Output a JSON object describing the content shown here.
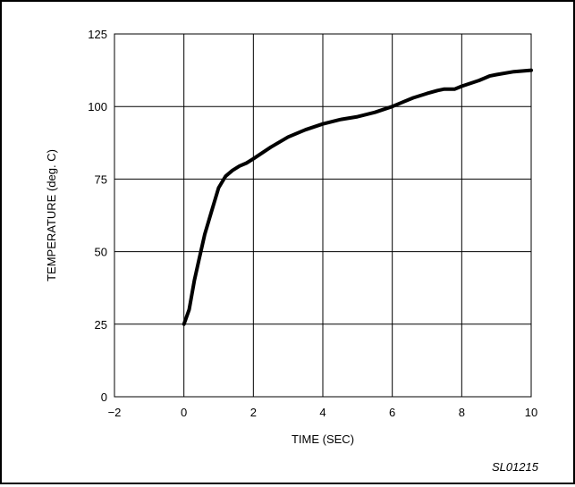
{
  "chart_data": {
    "type": "line",
    "xlabel": "TIME (SEC)",
    "ylabel": "TEMPERATURE (deg. C)",
    "xlim": [
      -2,
      10
    ],
    "ylim": [
      0,
      125
    ],
    "xticks": [
      -2,
      0,
      2,
      4,
      6,
      8,
      10
    ],
    "yticks": [
      0,
      25,
      50,
      75,
      100,
      125
    ],
    "xtick_labels": [
      "−2",
      "0",
      "2",
      "4",
      "6",
      "8",
      "10"
    ],
    "ytick_labels": [
      "0",
      "25",
      "50",
      "75",
      "100",
      "125"
    ],
    "grid": true,
    "series": [
      {
        "x": [
          0,
          0.15,
          0.3,
          0.45,
          0.6,
          0.8,
          0.9,
          1.0,
          1.1,
          1.2,
          1.4,
          1.6,
          1.8,
          2.0,
          2.5,
          3.0,
          3.5,
          4.0,
          4.5,
          5.0,
          5.5,
          6.0,
          6.3,
          6.6,
          7.0,
          7.3,
          7.5,
          7.8,
          8.0,
          8.5,
          8.8,
          9.0,
          9.5,
          10.0
        ],
        "y": [
          25,
          30,
          40,
          48,
          56,
          64,
          68,
          72,
          74,
          76,
          78,
          79.5,
          80.5,
          82,
          86,
          89.5,
          92,
          94,
          95.5,
          96.5,
          98,
          100,
          101.5,
          103,
          104.5,
          105.5,
          106,
          106,
          107,
          109,
          110.5,
          111,
          112,
          112.5
        ]
      }
    ],
    "code_label": "SL01215"
  }
}
